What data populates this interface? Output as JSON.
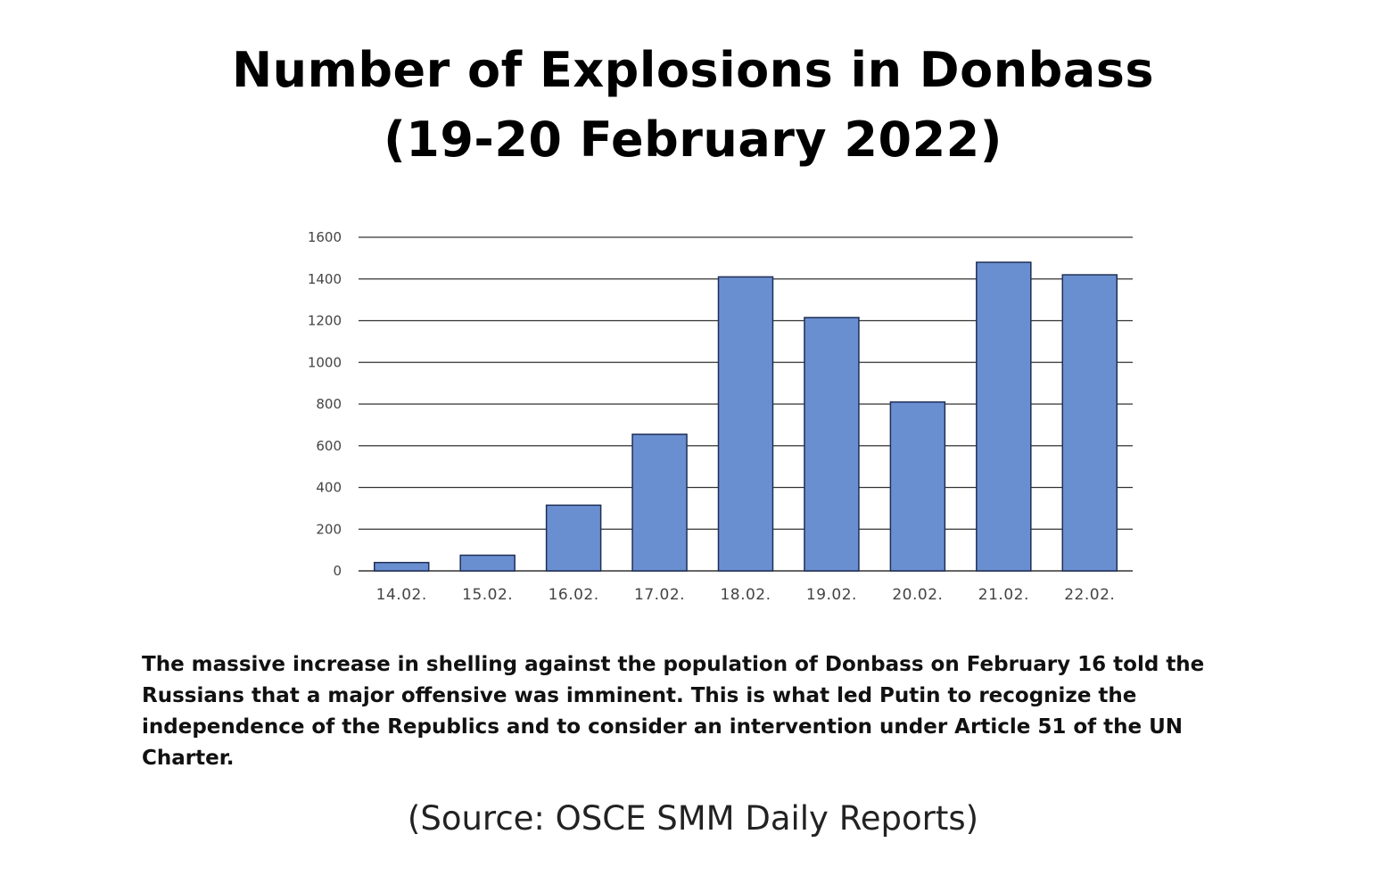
{
  "chart_data": {
    "type": "bar",
    "title": "Number of Explosions in Donbass (19-20 February 2022)",
    "title_lines": [
      "Number of Explosions in Donbass",
      "(19-20 February 2022)"
    ],
    "categories": [
      "14.02.",
      "15.02.",
      "16.02.",
      "17.02.",
      "18.02.",
      "19.02.",
      "20.02.",
      "21.02.",
      "22.02."
    ],
    "values": [
      40,
      75,
      315,
      655,
      1410,
      1215,
      810,
      1480,
      1420
    ],
    "xlabel": "",
    "ylabel": "",
    "ylim": [
      0,
      1600
    ],
    "yticks": [
      0,
      200,
      400,
      600,
      800,
      1000,
      1200,
      1400,
      1600
    ],
    "grid": true,
    "legend": "none",
    "bar_color": "#6a8fd1",
    "bar_edge_color": "#1f2f55",
    "grid_color": "#333333"
  },
  "caption": "The massive increase in shelling against the population of Donbass on February 16 told the Russians that a major offensive was imminent. This is what led Putin to recognize the independence of the Republics and to consider an intervention under Article 51 of the UN Charter.",
  "source": "(Source: OSCE SMM Daily Reports)"
}
